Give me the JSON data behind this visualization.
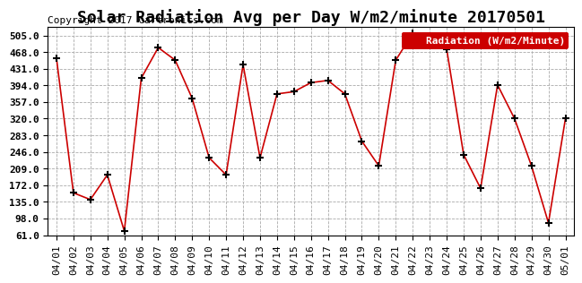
{
  "title": "Solar Radiation Avg per Day W/m2/minute 20170501",
  "copyright": "Copyright 2017 Cartronics.com",
  "legend_label": "Radiation (W/m2/Minute)",
  "dates": [
    "04/01",
    "04/02",
    "04/03",
    "04/04",
    "04/05",
    "04/06",
    "04/07",
    "04/08",
    "04/09",
    "04/10",
    "04/11",
    "04/12",
    "04/13",
    "04/14",
    "04/15",
    "04/16",
    "04/17",
    "04/18",
    "04/19",
    "04/20",
    "04/21",
    "04/22",
    "04/23",
    "04/24",
    "04/25",
    "04/26",
    "04/27",
    "04/28",
    "04/29",
    "04/30",
    "05/01"
  ],
  "values": [
    455,
    155,
    140,
    195,
    70,
    410,
    478,
    450,
    365,
    233,
    195,
    440,
    233,
    375,
    380,
    400,
    405,
    375,
    270,
    215,
    450,
    510,
    488,
    475,
    240,
    165,
    395,
    320,
    215,
    88,
    320
  ],
  "line_color": "#cc0000",
  "marker_color": "#000000",
  "background_color": "#ffffff",
  "grid_color": "#aaaaaa",
  "ylim_min": 61.0,
  "ylim_max": 524.0,
  "yticks": [
    61.0,
    98.0,
    135.0,
    172.0,
    209.0,
    246.0,
    283.0,
    320.0,
    357.0,
    394.0,
    431.0,
    468.0,
    505.0
  ],
  "legend_bg": "#cc0000",
  "legend_text_color": "#ffffff",
  "title_fontsize": 13,
  "copyright_fontsize": 8,
  "tick_fontsize": 8
}
